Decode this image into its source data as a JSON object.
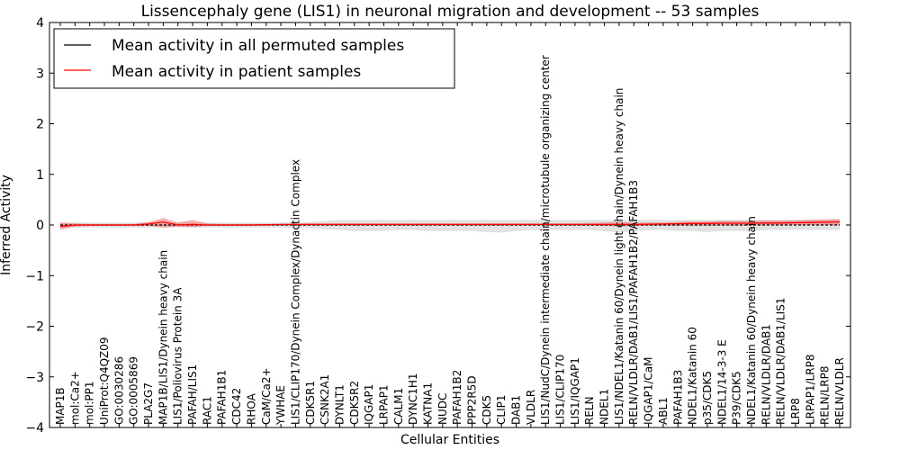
{
  "chart_data": {
    "type": "line",
    "title": "Lissencephaly gene (LIS1) in neuronal migration and development -- 53 samples",
    "xlabel": "Cellular Entities",
    "ylabel": "Inferred Activity",
    "ylim": [
      -4,
      4
    ],
    "yticks": [
      -4,
      -3,
      -2,
      -1,
      0,
      1,
      2,
      3,
      4
    ],
    "legend_position": "top-left",
    "grid": false,
    "categories": [
      "MAP1B",
      "mol:Ca2+",
      "mol:PP1",
      "UniProt:Q4QZ09",
      "GO:0030286",
      "GO:0005869",
      "PLA2G7",
      "MAP1B/LIS1/Dynein heavy chain",
      "LIS1/Poliovirus Protein 3A",
      "PAFAH/LIS1",
      "RAC1",
      "PAFAH1B1",
      "CDC42",
      "RHOA",
      "CaM/Ca2+",
      "YWHAE",
      "LIS1/CLIP170/Dynein Complex/Dynactin Complex",
      "CDK5R1",
      "CSNK2A1",
      "DYNLT1",
      "CDK5R2",
      "IQGAP1",
      "LRPAP1",
      "CALM1",
      "DYNC1H1",
      "KATNA1",
      "NUDC",
      "PAFAH1B2",
      "PPP2R5D",
      "CDK5",
      "CLIP1",
      "DAB1",
      "VLDLR",
      "LIS1/NudC/Dynein intermediate chain/microtubule organizing center",
      "LIS1/CLIP170",
      "LIS1/IQGAP1",
      "RELN",
      "NDEL1",
      "LIS1/NDEL1/Katanin 60/Dynein light chain/Dynein heavy chain",
      "RELN/VLDLR/DAB1/LIS1/PAFAH1B2/PAFAH1B3",
      "IQGAP1/CaM",
      "ABL1",
      "PAFAH1B3",
      "NDEL1/Katanin 60",
      "p35/CDK5",
      "NDEL1/14-3-3 E",
      "P39/CDK5",
      "NDEL1/Katanin 60/Dynein heavy chain",
      "RELN/VLDLR/DAB1",
      "RELN/VLDLR/DAB1/LIS1",
      "LRP8",
      "LRPAP1/LRP8",
      "RELN/LRP8",
      "RELN/VLDLR"
    ],
    "series": [
      {
        "name": "Mean activity in all permuted samples",
        "color": "#000000",
        "values": [
          0,
          0,
          0,
          0,
          0,
          0,
          0,
          0,
          0,
          0,
          0,
          0,
          0,
          0,
          0,
          0,
          0,
          0,
          0,
          0,
          0,
          0,
          0,
          0,
          0,
          0,
          0,
          0,
          0,
          0,
          0,
          0,
          0,
          0,
          0,
          0,
          0,
          0,
          0,
          0,
          0,
          0,
          0,
          0,
          0,
          0,
          0,
          0,
          0,
          0,
          0,
          0,
          0,
          0
        ],
        "band_low": [
          -0.05,
          -0.05,
          -0.05,
          -0.05,
          -0.05,
          -0.05,
          -0.05,
          -0.05,
          -0.05,
          -0.05,
          -0.05,
          -0.05,
          -0.05,
          -0.05,
          -0.05,
          -0.05,
          -0.06,
          -0.06,
          -0.08,
          -0.1,
          -0.12,
          -0.12,
          -0.12,
          -0.1,
          -0.1,
          -0.12,
          -0.12,
          -0.12,
          -0.12,
          -0.14,
          -0.15,
          -0.12,
          -0.1,
          -0.1,
          -0.1,
          -0.1,
          -0.1,
          -0.12,
          -0.15,
          -0.12,
          -0.1,
          -0.1,
          -0.12,
          -0.12,
          -0.14,
          -0.12,
          -0.12,
          -0.12,
          -0.1,
          -0.1,
          -0.1,
          -0.1,
          -0.1,
          -0.1
        ],
        "band_high": [
          0.05,
          0.05,
          0.05,
          0.05,
          0.05,
          0.05,
          0.05,
          0.05,
          0.05,
          0.05,
          0.05,
          0.05,
          0.05,
          0.05,
          0.05,
          0.05,
          0.06,
          0.06,
          0.08,
          0.1,
          0.1,
          0.1,
          0.1,
          0.1,
          0.1,
          0.1,
          0.1,
          0.1,
          0.1,
          0.1,
          0.1,
          0.1,
          0.1,
          0.1,
          0.1,
          0.1,
          0.1,
          0.1,
          0.1,
          0.1,
          0.1,
          0.1,
          0.1,
          0.1,
          0.1,
          0.1,
          0.1,
          0.1,
          0.1,
          0.1,
          0.1,
          0.1,
          0.1,
          0.1
        ]
      },
      {
        "name": "Mean activity in patient samples",
        "color": "#ff0000",
        "values": [
          -0.03,
          0,
          0,
          0,
          0,
          0,
          0.02,
          0.06,
          0.0,
          0.01,
          0,
          0,
          0,
          0,
          0.005,
          0.01,
          0.01,
          0.01,
          0.01,
          0.01,
          0.01,
          0.01,
          0.01,
          0.01,
          0.01,
          0.01,
          0.01,
          0.01,
          0.01,
          0.01,
          0.01,
          0.01,
          0.01,
          0.01,
          0.01,
          0.01,
          0.01,
          0.01,
          0.01,
          0.01,
          0.015,
          0.02,
          0.025,
          0.03,
          0.03,
          0.035,
          0.035,
          0.035,
          0.04,
          0.04,
          0.045,
          0.05,
          0.055,
          0.06
        ],
        "band_low": [
          -0.1,
          -0.03,
          -0.02,
          -0.02,
          -0.02,
          -0.02,
          -0.02,
          -0.05,
          -0.03,
          -0.04,
          -0.02,
          -0.02,
          -0.02,
          -0.02,
          -0.01,
          -0.01,
          -0.01,
          -0.01,
          -0.01,
          -0.01,
          -0.01,
          -0.01,
          -0.01,
          -0.01,
          -0.01,
          -0.01,
          -0.01,
          -0.01,
          -0.01,
          -0.01,
          -0.01,
          -0.01,
          -0.01,
          -0.01,
          -0.01,
          -0.01,
          -0.01,
          -0.02,
          -0.03,
          -0.02,
          -0.01,
          -0.01,
          -0.01,
          -0.01,
          -0.01,
          -0.01,
          -0.01,
          -0.01,
          0.0,
          0.0,
          0.0,
          0.0,
          0.0,
          0.0
        ],
        "band_high": [
          0.05,
          0.03,
          0.02,
          0.02,
          0.02,
          0.02,
          0.06,
          0.14,
          0.05,
          0.1,
          0.03,
          0.02,
          0.02,
          0.02,
          0.02,
          0.02,
          0.03,
          0.03,
          0.03,
          0.03,
          0.03,
          0.03,
          0.03,
          0.03,
          0.03,
          0.03,
          0.03,
          0.03,
          0.03,
          0.03,
          0.03,
          0.03,
          0.03,
          0.03,
          0.03,
          0.03,
          0.04,
          0.05,
          0.06,
          0.05,
          0.05,
          0.05,
          0.06,
          0.07,
          0.07,
          0.08,
          0.08,
          0.08,
          0.09,
          0.09,
          0.09,
          0.1,
          0.11,
          0.12
        ]
      }
    ]
  }
}
